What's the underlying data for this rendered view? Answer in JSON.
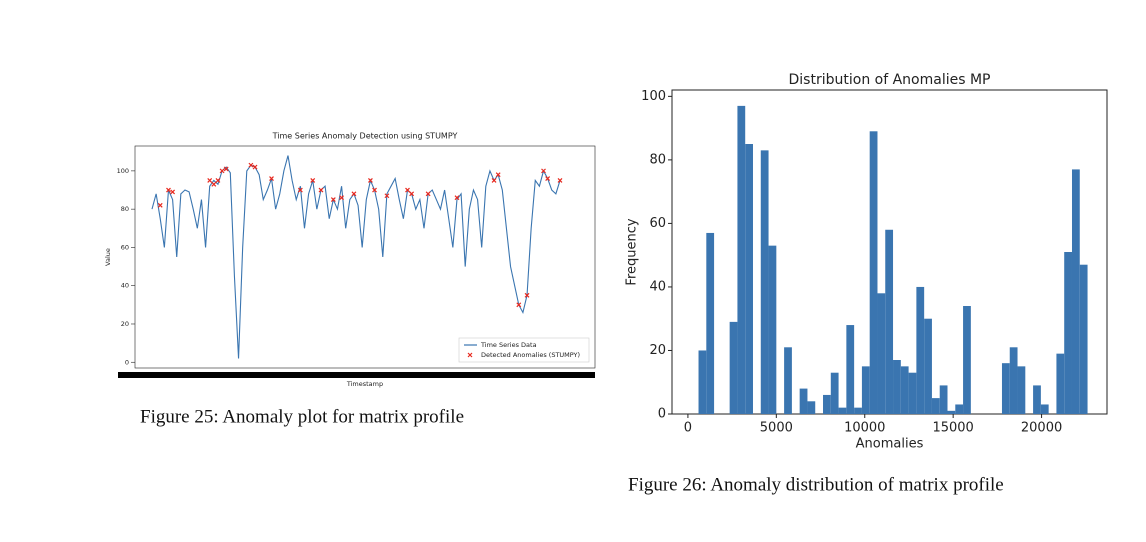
{
  "chart_data": [
    {
      "type": "line",
      "title": "Time Series Anomaly Detection using STUMPY",
      "x_label": "Timestamp",
      "y_label": "Value",
      "ylim": [
        -3,
        113
      ],
      "yticks": [
        0,
        20,
        40,
        60,
        80,
        100
      ],
      "legend": "lower right",
      "series": [
        {
          "name": "Time Series Data",
          "color": "#3a75b0",
          "marker": "line",
          "values": [
            80,
            88,
            75,
            60,
            90,
            85,
            55,
            88,
            90,
            89,
            80,
            70,
            85,
            60,
            92,
            95,
            93,
            100,
            102,
            99,
            45,
            2,
            60,
            100,
            103,
            102,
            98,
            85,
            90,
            96,
            80,
            88,
            100,
            108,
            95,
            85,
            92,
            70,
            88,
            95,
            80,
            90,
            92,
            75,
            85,
            80,
            92,
            70,
            85,
            88,
            82,
            60,
            85,
            95,
            90,
            80,
            55,
            88,
            92,
            96,
            85,
            75,
            90,
            88,
            80,
            85,
            70,
            88,
            90,
            85,
            80,
            90,
            75,
            60,
            85,
            88,
            50,
            80,
            90,
            85,
            60,
            92,
            100,
            95,
            98,
            90,
            70,
            50,
            40,
            30,
            26,
            35,
            70,
            95,
            92,
            100,
            96,
            90,
            88,
            95
          ]
        },
        {
          "name": "Detected Anomalies (STUMPY)",
          "color": "#e8281e",
          "marker": "x",
          "values": [
            null,
            null,
            82,
            null,
            90,
            89,
            null,
            null,
            null,
            null,
            null,
            null,
            null,
            null,
            95,
            93,
            95,
            100,
            101,
            null,
            null,
            null,
            null,
            null,
            103,
            102,
            null,
            null,
            null,
            96,
            null,
            null,
            null,
            null,
            null,
            null,
            90,
            null,
            null,
            95,
            null,
            90,
            null,
            null,
            85,
            null,
            86,
            null,
            null,
            88,
            null,
            null,
            null,
            95,
            90,
            null,
            null,
            87,
            null,
            null,
            null,
            null,
            90,
            88,
            null,
            null,
            null,
            88,
            null,
            null,
            null,
            null,
            null,
            null,
            86,
            null,
            null,
            null,
            null,
            null,
            null,
            null,
            null,
            95,
            98,
            null,
            null,
            null,
            null,
            30,
            null,
            35,
            null,
            null,
            null,
            100,
            96,
            null,
            null,
            95
          ]
        }
      ]
    },
    {
      "type": "histogram",
      "title": "Distribution of Anomalies MP",
      "x_label": "Anomalies",
      "y_label": "Frequency",
      "color": "#3a75b0",
      "xlim": [
        -900,
        23700
      ],
      "xticks": [
        0,
        5000,
        10000,
        15000,
        20000
      ],
      "ylim": [
        0,
        102
      ],
      "yticks": [
        0,
        20,
        40,
        60,
        80,
        100
      ],
      "bins": [
        600,
        1040,
        1480,
        1920,
        2360,
        2800,
        3240,
        3680,
        4120,
        4560,
        5000,
        5440,
        5880,
        6320,
        6760,
        7200,
        7640,
        8080,
        8520,
        8960,
        9400,
        9840,
        10280,
        10720,
        11160,
        11600,
        12040,
        12480,
        12920,
        13360,
        13800,
        14240,
        14680,
        15120,
        15560,
        16000,
        16440,
        16880,
        17320,
        17760,
        18200,
        18640,
        19080,
        19520,
        19960,
        20400,
        20840,
        21280,
        21720,
        22160,
        22600
      ],
      "values": [
        20,
        57,
        0,
        0,
        29,
        97,
        85,
        0,
        83,
        53,
        0,
        21,
        0,
        8,
        4,
        0,
        6,
        13,
        2,
        28,
        2,
        15,
        89,
        38,
        58,
        17,
        15,
        13,
        40,
        30,
        5,
        9,
        1,
        3,
        34,
        0,
        0,
        0,
        0,
        16,
        21,
        15,
        0,
        9,
        3,
        0,
        19,
        51,
        77,
        47
      ]
    }
  ],
  "captions": [
    "Figure 25: Anomaly plot for matrix profile",
    "Figure 26: Anomaly distribution of matrix profile"
  ]
}
